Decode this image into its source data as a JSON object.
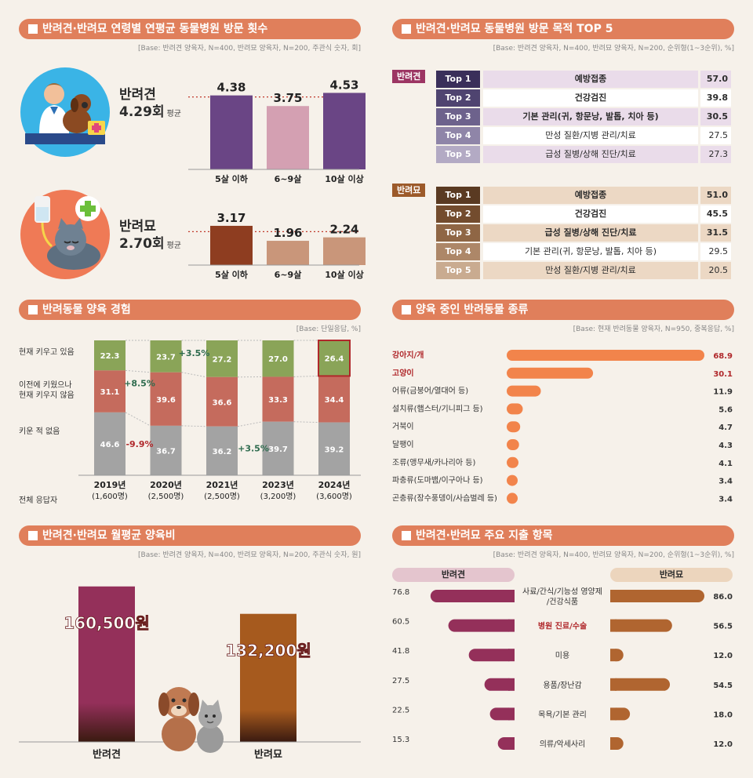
{
  "visits": {
    "title": "반려견·반려묘 연령별 연평균 동물병원 방문 횟수",
    "base": "[Base: 반려견 양육자, N=400, 반려묘 양육자, N=200, 주관식 숫자, 회]",
    "dog": {
      "name": "반려견",
      "avg": "4.29회",
      "avg_suffix": "평균"
    },
    "cat": {
      "name": "반려묘",
      "avg": "2.70회",
      "avg_suffix": "평균"
    }
  },
  "purpose": {
    "title": "반려견·반려묘 동물병원 방문 목적 TOP 5",
    "base": "[Base: 반려견 양육자, N=400, 반려묘 양육자, N=200, 순위형(1~3순위), %]",
    "dog_tag": "반려견",
    "cat_tag": "반려묘",
    "dog_rows": [
      {
        "rank": "Top 1",
        "name": "예방접종",
        "value": "57.0"
      },
      {
        "rank": "Top 2",
        "name": "건강검진",
        "value": "39.8"
      },
      {
        "rank": "Top 3",
        "name": "기본 관리(귀, 항문낭, 발톱, 치아 등)",
        "value": "30.5"
      },
      {
        "rank": "Top 4",
        "name": "만성 질환/지병 관리/치료",
        "value": "27.5"
      },
      {
        "rank": "Top 5",
        "name": "급성 질병/상해 진단/치료",
        "value": "27.3"
      }
    ],
    "cat_rows": [
      {
        "rank": "Top 1",
        "name": "예방접종",
        "value": "51.0"
      },
      {
        "rank": "Top 2",
        "name": "건강검진",
        "value": "45.5"
      },
      {
        "rank": "Top 3",
        "name": "급성 질병/상해 진단/치료",
        "value": "31.5"
      },
      {
        "rank": "Top 4",
        "name": "기본 관리(귀, 항문낭, 발톱, 치아 등)",
        "value": "29.5"
      },
      {
        "rank": "Top 5",
        "name": "만성 질환/지병 관리/치료",
        "value": "20.5"
      }
    ]
  },
  "experience": {
    "title": "반려동물 양육 경험",
    "base": "[Base: 단일응답, %]",
    "row_labels": [
      "현재 키우고 있음",
      "이전에 키웠으나\n현재 키우지 않음",
      "키운 적 없음",
      "전체 응답자"
    ]
  },
  "species": {
    "title": "양육 중인 반려동물 종류",
    "base": "[Base: 현재 반려동물 양육자, N=950, 중복응답, %]"
  },
  "cost": {
    "title": "반려견·반려묘 월평균 양육비",
    "base": "[Base: 반려견 양육자, N=400, 반려묘 양육자, N=200, 주관식 숫자, 원]"
  },
  "spend": {
    "title": "반려견·반려묘 주요 지출 항목",
    "base": "[Base: 반려견 양육자, N=400, 반려묘 양육자, N=200, 순위형(1~3순위), %]",
    "dog_header": "반려견",
    "cat_header": "반려묘"
  },
  "chart_data": [
    {
      "type": "bar",
      "categories": [
        "5살 이하",
        "6~9살",
        "10살 이상"
      ],
      "values": [
        4.38,
        3.75,
        4.53
      ],
      "avg": 4.29,
      "colors": [
        "#6a4585",
        "#d4a0b2",
        "#6a4585"
      ]
    },
    {
      "type": "bar",
      "categories": [
        "5살 이하",
        "6~9살",
        "10살 이상"
      ],
      "values": [
        3.17,
        1.96,
        2.24
      ],
      "avg": 2.7,
      "colors": [
        "#8e3d20",
        "#c9967a",
        "#c9967a"
      ]
    },
    {
      "type": "bar",
      "stacked": true,
      "categories": [
        "2019년",
        "2020년",
        "2021년",
        "2023년",
        "2024년"
      ],
      "sample_sizes": [
        "(1,600명)",
        "(2,500명)",
        "(2,500명)",
        "(3,200명)",
        "(3,600명)"
      ],
      "series": [
        {
          "name": "현재 키우고 있음",
          "values": [
            22.3,
            23.7,
            27.2,
            27.0,
            26.4
          ],
          "color": "#8aa458"
        },
        {
          "name": "이전에 키웠으나 현재 키우지 않음",
          "values": [
            31.1,
            39.6,
            36.6,
            33.3,
            34.4
          ],
          "color": "#c56b5d"
        },
        {
          "name": "키운 적 없음",
          "values": [
            46.6,
            36.7,
            36.2,
            39.7,
            39.2
          ],
          "color": "#a3a3a3"
        }
      ],
      "annotations": [
        {
          "text": "+3.5%",
          "color": "#2e6b4e"
        },
        {
          "text": "+8.5%",
          "color": "#2e6b4e"
        },
        {
          "text": "-9.9%",
          "color": "#b0282b"
        },
        {
          "text": "+3.5%",
          "color": "#2e6b4e"
        }
      ]
    },
    {
      "type": "bar",
      "orientation": "horizontal",
      "categories": [
        "강아지/개",
        "고양이",
        "어류(금붕어/열대어 등)",
        "설치류(햄스터/기니피그 등)",
        "거북이",
        "달팽이",
        "조류(앵무새/카나리아 등)",
        "파충류(도마뱀/이구아나 등)",
        "곤충류(장수풍뎅이/사슴벌레 등)"
      ],
      "values": [
        68.9,
        30.1,
        11.9,
        5.6,
        4.7,
        4.3,
        4.1,
        3.4,
        3.4
      ],
      "highlight_color": "#b0282b",
      "bar_color": "#f2844b"
    },
    {
      "type": "bar",
      "categories": [
        "반려견",
        "반려묘"
      ],
      "values": [
        160500,
        132200
      ],
      "value_labels": [
        "160,500원",
        "132,200원"
      ],
      "colors": [
        "#94305a",
        "#a65a1e"
      ]
    },
    {
      "type": "bar",
      "orientation": "horizontal",
      "categories": [
        "사료/간식/기능성 영양제\n/건강식품",
        "병원 진료/수술",
        "미용",
        "용품/장난감",
        "목욕/기본 관리",
        "의류/악세사리"
      ],
      "series": [
        {
          "name": "반려견",
          "values": [
            76.8,
            60.5,
            41.8,
            27.5,
            22.5,
            15.3
          ],
          "color": "#94305a"
        },
        {
          "name": "반려묘",
          "values": [
            86.0,
            56.5,
            12.0,
            54.5,
            18.0,
            12.0
          ],
          "color": "#b06530"
        }
      ],
      "value_labels": {
        "반려견": [
          "76.8",
          "60.5",
          "41.8",
          "27.5",
          "22.5",
          "15.3"
        ],
        "반려묘": [
          "86.0",
          "56.5",
          "12.0",
          "54.5",
          "18.0",
          "12.0"
        ]
      }
    }
  ]
}
